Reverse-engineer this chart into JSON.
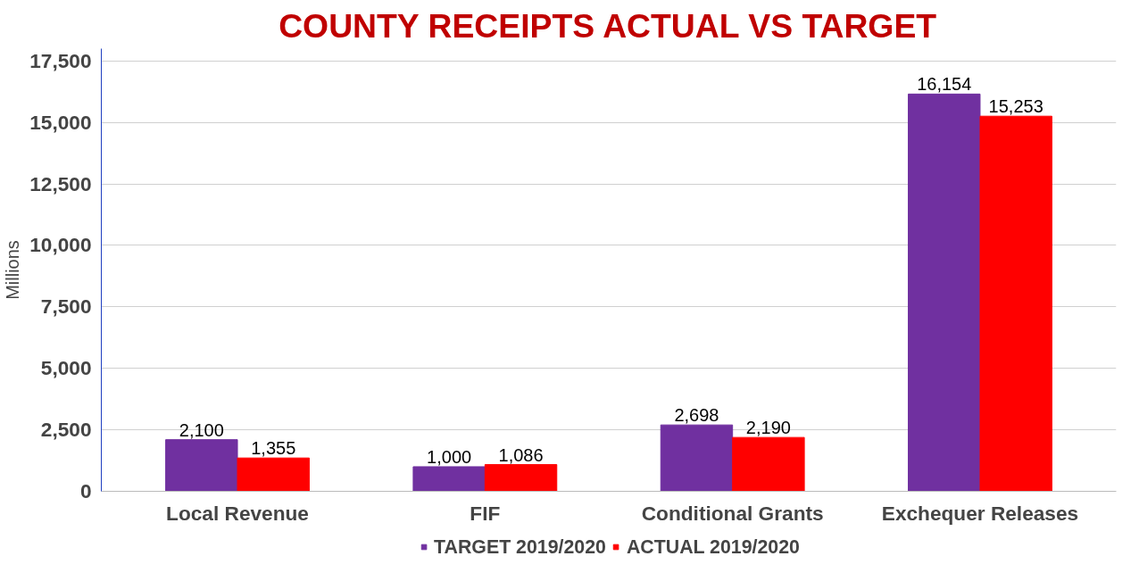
{
  "chart_data": {
    "type": "bar",
    "title": "COUNTY RECEIPTS ACTUAL VS TARGET",
    "ylabel": "Millions",
    "categories": [
      "Local Revenue",
      "FIF",
      "Conditional Grants",
      "Exchequer Releases"
    ],
    "series": [
      {
        "name": "TARGET 2019/2020",
        "color": "#7030a0",
        "values": [
          2100,
          1000,
          2698,
          16154
        ],
        "value_labels": [
          "2,100",
          "1,000",
          "2,698",
          "16,154"
        ]
      },
      {
        "name": "ACTUAL 2019/2020",
        "color": "#ff0000",
        "values": [
          1355,
          1086,
          2190,
          15253
        ],
        "value_labels": [
          "1,355",
          "1,086",
          "2,190",
          "15,253"
        ]
      }
    ],
    "ylim": [
      0,
      18000
    ],
    "yticks": [
      0,
      {
        "value": 2500,
        "label": "2,500"
      },
      {
        "value": 5000,
        "label": "5,000"
      },
      {
        "value": 7500,
        "label": "7,500"
      },
      {
        "value": 10000,
        "label": "10,000"
      },
      {
        "value": 12500,
        "label": "12,500"
      },
      {
        "value": 15000,
        "label": "15,000"
      },
      {
        "value": 17500,
        "label": "17,500"
      }
    ],
    "grid": "y",
    "legend": "bottom"
  }
}
